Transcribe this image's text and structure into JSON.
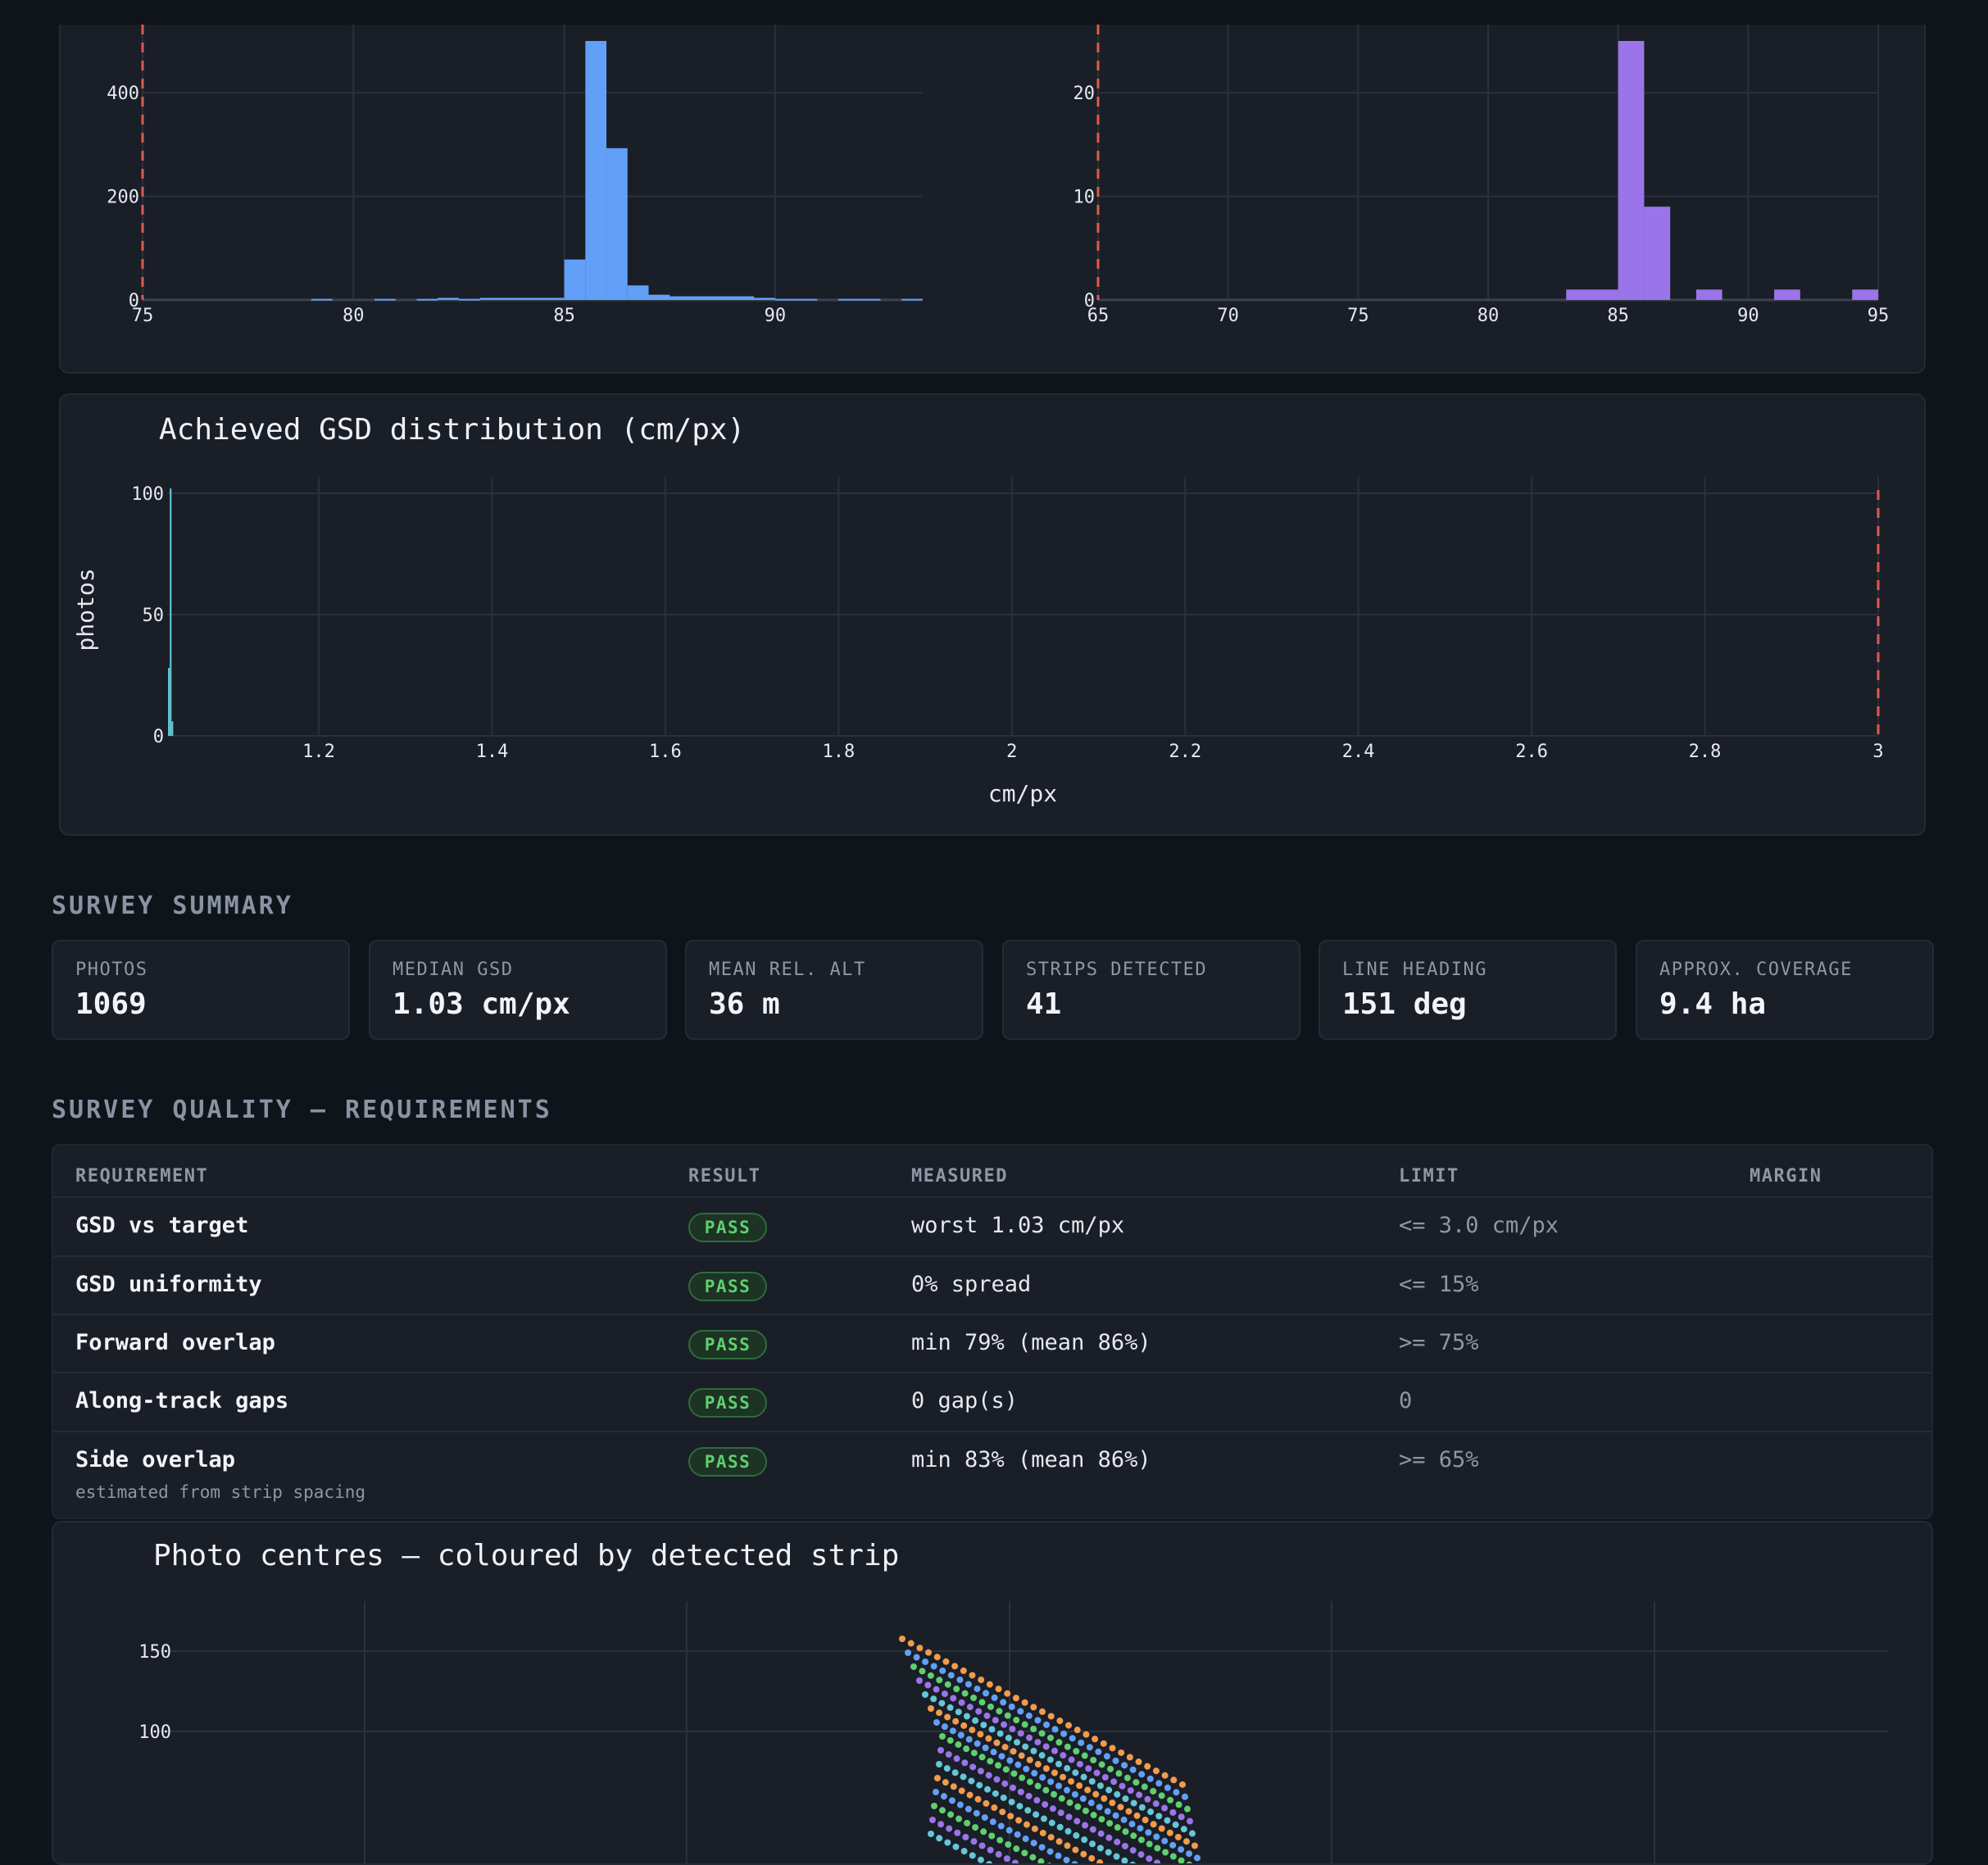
{
  "colors": {
    "blue": "#62a0f7",
    "purple": "#9b74ea",
    "teal": "#63c7d8",
    "red": "#e05a4f",
    "green": "#5fcf6f"
  },
  "charts_meta": {
    "hist_left_ticks_x": [
      "75",
      "80",
      "85",
      "90"
    ],
    "hist_left_ticks_y": [
      "0",
      "200",
      "400"
    ],
    "hist_right_ticks_x": [
      "65",
      "70",
      "75",
      "80",
      "85",
      "90",
      "95"
    ],
    "hist_right_ticks_y": [
      "0",
      "10",
      "20"
    ]
  },
  "chart_data": [
    {
      "type": "bar",
      "xlim": [
        75,
        93.5
      ],
      "ylim": [
        0,
        500
      ],
      "limit_line_x": 75,
      "bins": [
        {
          "x0": 79,
          "x1": 79.5,
          "y": 2
        },
        {
          "x0": 80.5,
          "x1": 81,
          "y": 2
        },
        {
          "x0": 81.5,
          "x1": 82,
          "y": 2
        },
        {
          "x0": 82,
          "x1": 82.5,
          "y": 4
        },
        {
          "x0": 82.5,
          "x1": 83,
          "y": 2
        },
        {
          "x0": 83,
          "x1": 85,
          "y": 4
        },
        {
          "x0": 85,
          "x1": 85.5,
          "y": 78
        },
        {
          "x0": 85.5,
          "x1": 86,
          "y": 500
        },
        {
          "x0": 86,
          "x1": 86.5,
          "y": 293
        },
        {
          "x0": 86.5,
          "x1": 87,
          "y": 28
        },
        {
          "x0": 87,
          "x1": 87.5,
          "y": 10
        },
        {
          "x0": 87.5,
          "x1": 89.5,
          "y": 7
        },
        {
          "x0": 89.5,
          "x1": 90,
          "y": 4
        },
        {
          "x0": 90,
          "x1": 91,
          "y": 2
        },
        {
          "x0": 91.5,
          "x1": 92.5,
          "y": 2
        },
        {
          "x0": 93,
          "x1": 93.5,
          "y": 2
        }
      ]
    },
    {
      "type": "bar",
      "xlim": [
        65,
        95
      ],
      "ylim": [
        0,
        25
      ],
      "limit_line_x": 65,
      "bins": [
        {
          "x0": 83,
          "x1": 85,
          "y": 1
        },
        {
          "x0": 85,
          "x1": 86,
          "y": 25
        },
        {
          "x0": 86,
          "x1": 87,
          "y": 9
        },
        {
          "x0": 88,
          "x1": 89,
          "y": 1
        },
        {
          "x0": 91,
          "x1": 92,
          "y": 1
        },
        {
          "x0": 94,
          "x1": 95,
          "y": 1
        }
      ]
    },
    {
      "type": "bar",
      "title": "Achieved GSD distribution (cm/px)",
      "xlabel": "cm/px",
      "ylabel": "photos",
      "xlim": [
        1.025,
        3.0
      ],
      "ylim": [
        0,
        100
      ],
      "x_ticks": [
        "1.2",
        "1.4",
        "1.6",
        "1.8",
        "2",
        "2.2",
        "2.4",
        "2.6",
        "2.8",
        "3"
      ],
      "y_ticks": [
        "0",
        "50",
        "100"
      ],
      "limit_line_x": 3.0,
      "bins": [
        {
          "x0": 1.026,
          "x1": 1.028,
          "y": 28
        },
        {
          "x0": 1.028,
          "x1": 1.03,
          "y": 102
        },
        {
          "x0": 1.03,
          "x1": 1.032,
          "y": 6
        }
      ]
    },
    {
      "type": "scatter",
      "title": "Photo centres — coloured by detected strip",
      "y_ticks": [
        "100",
        "150"
      ],
      "ylim_visible": [
        70,
        170
      ],
      "strip_colors": [
        "#f29b4b",
        "#62a0f7",
        "#5fcf6f",
        "#9b74ea",
        "#63c7d8"
      ],
      "strips_detected": 41
    }
  ],
  "summary": {
    "title": "SURVEY SUMMARY",
    "stats": [
      {
        "label": "PHOTOS",
        "value": "1069"
      },
      {
        "label": "MEDIAN GSD",
        "value": "1.03 cm/px"
      },
      {
        "label": "MEAN REL. ALT",
        "value": "36 m"
      },
      {
        "label": "STRIPS DETECTED",
        "value": "41"
      },
      {
        "label": "LINE HEADING",
        "value": "151 deg"
      },
      {
        "label": "APPROX. COVERAGE",
        "value": "9.4 ha"
      }
    ]
  },
  "quality": {
    "title": "SURVEY QUALITY — REQUIREMENTS",
    "headers": [
      "REQUIREMENT",
      "RESULT",
      "MEASURED",
      "LIMIT",
      "MARGIN"
    ],
    "rows": [
      {
        "requirement": "GSD vs target",
        "note": "",
        "result": "PASS",
        "measured": "worst 1.03 cm/px",
        "limit": "<= 3.0 cm/px",
        "margin": ""
      },
      {
        "requirement": "GSD uniformity",
        "note": "",
        "result": "PASS",
        "measured": "0% spread",
        "limit": "<= 15%",
        "margin": ""
      },
      {
        "requirement": "Forward overlap",
        "note": "",
        "result": "PASS",
        "measured": "min 79% (mean 86%)",
        "limit": ">= 75%",
        "margin": ""
      },
      {
        "requirement": "Along-track gaps",
        "note": "",
        "result": "PASS",
        "measured": "0 gap(s)",
        "limit": "0",
        "margin": ""
      },
      {
        "requirement": "Side overlap",
        "note": "estimated from strip spacing",
        "result": "PASS",
        "measured": "min 83% (mean 86%)",
        "limit": ">= 65%",
        "margin": ""
      }
    ]
  }
}
